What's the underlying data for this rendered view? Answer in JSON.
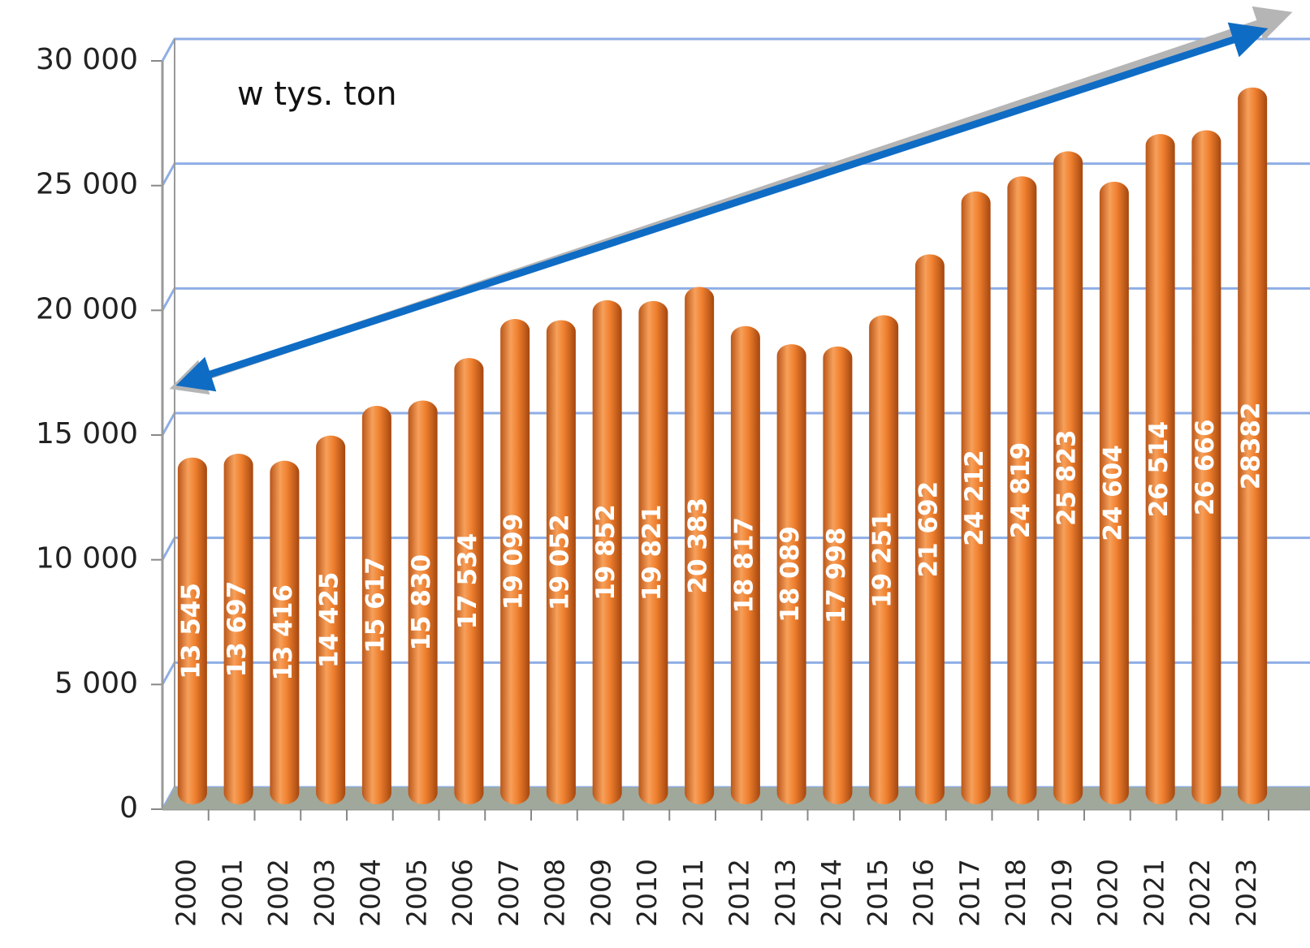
{
  "chart_data": {
    "type": "bar",
    "annotation": "w tys. ton",
    "categories": [
      "2000",
      "2001",
      "2002",
      "2003",
      "2004",
      "2005",
      "2006",
      "2007",
      "2008",
      "2009",
      "2010",
      "2011",
      "2012",
      "2013",
      "2014",
      "2015",
      "2016",
      "2017",
      "2018",
      "2019",
      "2020",
      "2021",
      "2022",
      "2023"
    ],
    "values": [
      13545,
      13697,
      13416,
      14425,
      15617,
      15830,
      17534,
      19099,
      19052,
      19852,
      19821,
      20383,
      18817,
      18089,
      17998,
      19251,
      21692,
      24212,
      24819,
      25823,
      24604,
      26514,
      26666,
      28382
    ],
    "value_labels": [
      "13 545",
      "13 697",
      "13 416",
      "14 425",
      "15 617",
      "15 830",
      "17 534",
      "19 099",
      "19 052",
      "19 852",
      "19 821",
      "20 383",
      "18 817",
      "18 089",
      "17 998",
      "19 251",
      "21 692",
      "24 212",
      "24 819",
      "25 823",
      "24 604",
      "26 514",
      "26 666",
      "28382"
    ],
    "color": "#ef7f2e",
    "ylim": [
      0,
      30000
    ],
    "yticks": [
      0,
      {
        "value": 5000,
        "label": "5 000"
      },
      {
        "value": 10000,
        "label": "10 000"
      },
      {
        "value": 15000,
        "label": "15 000"
      },
      {
        "value": 20000,
        "label": "20 000"
      },
      {
        "value": 25000,
        "label": "25 000"
      },
      {
        "value": 30000,
        "label": "30 000"
      }
    ],
    "grid": true
  }
}
